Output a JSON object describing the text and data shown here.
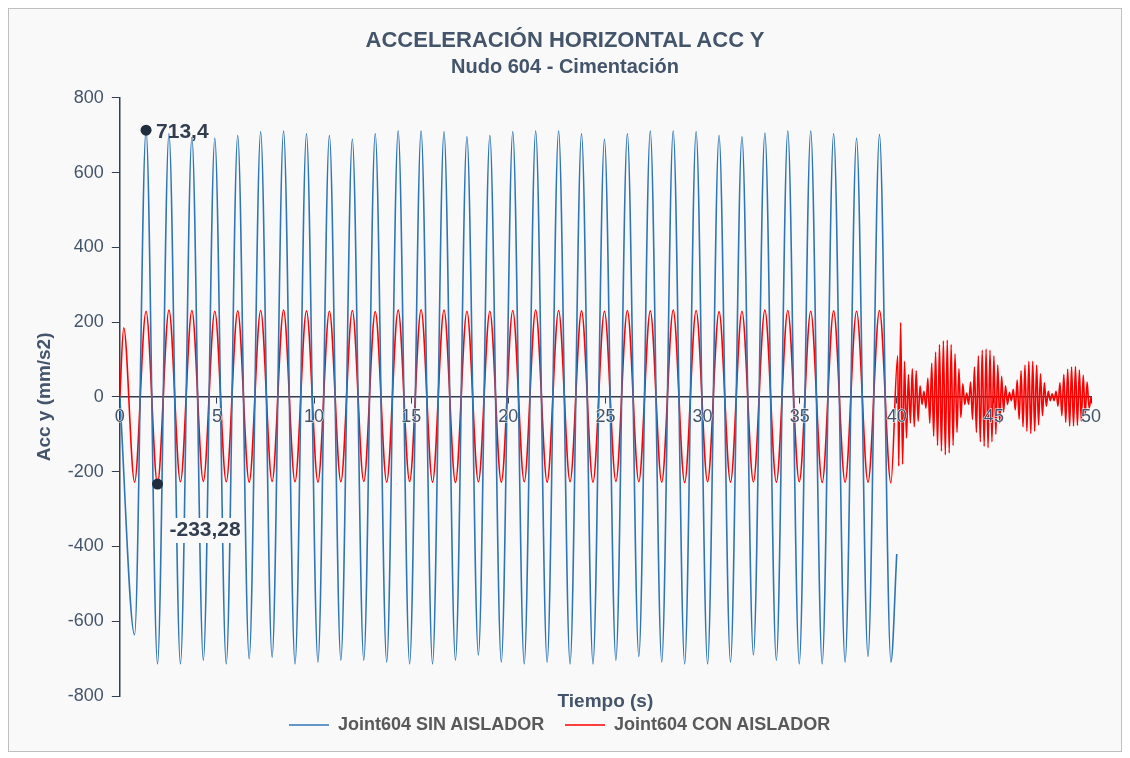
{
  "chart_data": {
    "type": "line",
    "title": "ACCELERACIÓN HORIZONTAL ACC Y",
    "subtitle": "Nudo 604 - Cimentación",
    "xlabel": "Tiempo (s)",
    "ylabel": "Acc y (mm/s2)",
    "xlim": [
      0,
      50
    ],
    "xticks": [
      0,
      5,
      10,
      15,
      20,
      25,
      30,
      35,
      40,
      45,
      50
    ],
    "ylim": [
      -800,
      800
    ],
    "yticks": [
      -800,
      -600,
      -400,
      -200,
      0,
      200,
      400,
      600,
      800
    ],
    "grid": false,
    "legend": "bottom",
    "marker": "none",
    "line_style": "solid",
    "annotations": [
      {
        "text": "713,4",
        "x": 1.35,
        "y": 713.4
      },
      {
        "text": "-233,28",
        "x": 1.94,
        "y": -233.28
      }
    ],
    "series": [
      {
        "name": "Joint604 SIN AISLADOR",
        "color": "#2e75b6",
        "x": [
          0,
          0.76,
          1.35,
          1.94,
          2.53,
          3.12,
          3.71,
          4.3,
          4.89,
          5.48,
          6.07,
          6.66,
          7.25,
          7.84,
          8.43,
          9.02,
          9.61,
          10.2,
          10.79,
          11.38,
          11.97,
          12.56,
          13.15,
          13.74,
          14.33,
          14.92,
          15.51,
          16.1,
          16.69,
          17.28,
          17.87,
          18.46,
          19.05,
          19.64,
          20.23,
          20.82,
          21.41,
          22.0,
          22.59,
          23.18,
          23.77,
          24.36,
          24.95,
          25.54,
          26.13,
          26.72,
          27.31,
          27.9,
          28.49,
          29.08,
          29.67,
          30.26,
          30.85,
          31.44,
          32.03,
          32.62,
          33.21,
          33.8,
          34.39,
          34.98,
          35.57,
          36.16,
          36.75,
          37.34,
          37.93,
          38.52,
          39.11,
          39.7,
          40.0
        ],
        "values": [
          0,
          -636,
          713.4,
          -714,
          704,
          -714,
          694,
          -704,
          692,
          -714,
          699,
          -700,
          709,
          -696,
          711,
          -714,
          704,
          -709,
          699,
          -704,
          689,
          -704,
          704,
          -709,
          711,
          -714,
          711,
          -714,
          709,
          -704,
          696,
          -690,
          699,
          -709,
          709,
          -714,
          711,
          -709,
          711,
          -714,
          704,
          -714,
          689,
          -704,
          704,
          -694,
          711,
          -709,
          711,
          -714,
          709,
          -714,
          699,
          -709,
          696,
          -690,
          706,
          -704,
          711,
          -714,
          711,
          -714,
          704,
          -709,
          692,
          -694,
          702,
          -709,
          -420
        ]
      },
      {
        "name": "Joint604 CON AISLADOR",
        "color": "#ff0000",
        "x": [
          0,
          0.2,
          0.76,
          1.35,
          1.94,
          2.53,
          3.12,
          3.71,
          4.3,
          4.89,
          5.48,
          6.07,
          6.66,
          7.25,
          7.84,
          8.43,
          9.02,
          9.61,
          10.2,
          10.79,
          11.38,
          11.97,
          12.56,
          13.15,
          13.74,
          14.33,
          14.92,
          15.51,
          16.1,
          16.69,
          17.28,
          17.87,
          18.46,
          19.05,
          19.64,
          20.23,
          20.82,
          21.41,
          22.0,
          22.59,
          23.18,
          23.77,
          24.36,
          24.95,
          25.54,
          26.13,
          26.72,
          27.31,
          27.9,
          28.49,
          29.08,
          29.67,
          30.26,
          30.85,
          31.44,
          32.03,
          32.62,
          33.21,
          33.8,
          34.39,
          34.98,
          35.57,
          36.16,
          36.75,
          37.34,
          37.93,
          38.52,
          39.11,
          39.7,
          40.05,
          40.1,
          40.2,
          40.3,
          40.4,
          40.5,
          40.6,
          40.7,
          40.8,
          40.9,
          41.0,
          41.1,
          41.2,
          41.3,
          41.4,
          41.5,
          41.6,
          41.7,
          41.8,
          41.9,
          42.0,
          42.1,
          42.2,
          42.3,
          42.4,
          42.5,
          42.6,
          42.7,
          42.8,
          42.9,
          43.0,
          43.1,
          43.2,
          43.3,
          43.4,
          43.5,
          43.6,
          43.7,
          43.8,
          43.9,
          44.0,
          44.1,
          44.2,
          44.3,
          44.4,
          44.5,
          44.6,
          44.7,
          44.8,
          44.9,
          45.0,
          45.1,
          45.2,
          45.3,
          45.4,
          45.5,
          45.6,
          45.7,
          45.8,
          45.9,
          46.0,
          46.1,
          46.2,
          46.3,
          46.4,
          46.5,
          46.6,
          46.7,
          46.8,
          46.9,
          47.0,
          47.1,
          47.2,
          47.3,
          47.4,
          47.5,
          47.6,
          47.7,
          47.8,
          47.9,
          48.0,
          48.1,
          48.2,
          48.3,
          48.4,
          48.5,
          48.6,
          48.7,
          48.8,
          48.9,
          49.0,
          49.1,
          49.2,
          49.3,
          49.4,
          49.5,
          49.6,
          49.7,
          49.8,
          49.9,
          50.0
        ],
        "values": [
          0,
          185,
          -228,
          229,
          -233.28,
          232,
          -227,
          231,
          -226,
          229,
          -227,
          230,
          -228,
          231,
          -226,
          232,
          -227,
          230,
          -228,
          229,
          -227,
          231,
          -226,
          228,
          -228,
          232,
          -226,
          233,
          -228,
          232,
          -229,
          229,
          -227,
          229,
          -228,
          231,
          -227,
          232,
          -228,
          231,
          -227,
          230,
          -228,
          229,
          -226,
          231,
          -227,
          230,
          -228,
          232,
          -229,
          231,
          -227,
          228,
          -228,
          229,
          -227,
          232,
          -228,
          231,
          -227,
          229,
          -229,
          230,
          -228,
          229,
          -228,
          231,
          -230,
          110,
          -185,
          199,
          -180,
          95,
          -110,
          60,
          -70,
          75,
          -80,
          70,
          -65,
          30,
          -20,
          15,
          -30,
          50,
          -70,
          90,
          -105,
          120,
          -130,
          140,
          -145,
          150,
          -155,
          152,
          -150,
          140,
          -130,
          115,
          -95,
          75,
          -55,
          35,
          -20,
          10,
          -20,
          40,
          -60,
          80,
          -95,
          110,
          -120,
          125,
          -132,
          128,
          -136,
          125,
          -120,
          110,
          -100,
          85,
          -70,
          55,
          -40,
          30,
          -20,
          12,
          -10,
          20,
          -35,
          45,
          -60,
          70,
          -80,
          85,
          -92,
          95,
          -98,
          95,
          -92,
          85,
          -75,
          62,
          -50,
          38,
          -25,
          15,
          -10,
          8,
          -10,
          15,
          -25,
          38,
          -50,
          60,
          -68,
          74,
          -78,
          80,
          -78,
          81,
          -76,
          72,
          -65,
          58,
          -48,
          40,
          -30,
          0
        ]
      }
    ]
  }
}
